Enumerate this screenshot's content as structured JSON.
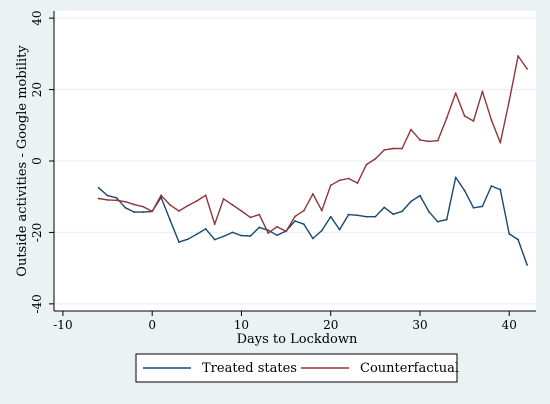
{
  "chart_data": {
    "type": "line",
    "xlabel": "Days to Lockdown",
    "ylabel": "Outside activities - Google mobility",
    "xlim": [
      -11,
      43
    ],
    "ylim": [
      -42,
      42
    ],
    "xticks": [
      -10,
      0,
      10,
      20,
      30,
      40
    ],
    "yticks": [
      40,
      20,
      0,
      -20,
      -40
    ],
    "ytick_labels": [
      "40",
      "20",
      "0",
      "-20",
      "-40"
    ],
    "grid": true,
    "legend_position": "bottom",
    "series": [
      {
        "name": "Treated states",
        "color": "#1a476f",
        "x": [
          -6,
          -5,
          -4,
          -3,
          -2,
          -1,
          0,
          1,
          2,
          3,
          4,
          5,
          6,
          7,
          8,
          9,
          10,
          11,
          12,
          13,
          14,
          15,
          16,
          17,
          18,
          19,
          20,
          21,
          22,
          23,
          24,
          25,
          26,
          27,
          28,
          29,
          30,
          31,
          32,
          33,
          34,
          35,
          36,
          37,
          38,
          39,
          40,
          41,
          42
        ],
        "y": [
          -7.5,
          -9.7,
          -10.3,
          -13.1,
          -14.3,
          -14.3,
          -14.1,
          -10.2,
          -16.5,
          -22.7,
          -21.9,
          -20.5,
          -19.0,
          -22.0,
          -21.1,
          -20.0,
          -20.9,
          -21.0,
          -18.6,
          -19.4,
          -20.8,
          -19.6,
          -16.8,
          -17.7,
          -21.7,
          -19.5,
          -15.6,
          -19.2,
          -15.0,
          -15.2,
          -15.6,
          -15.6,
          -13.0,
          -14.9,
          -14.1,
          -11.3,
          -9.7,
          -14.2,
          -17.0,
          -16.4,
          -4.6,
          -8.3,
          -13.1,
          -12.7,
          -7.0,
          -8.0,
          -20.4,
          -22.0,
          -29.1
        ]
      },
      {
        "name": "Counterfactual",
        "color": "#90353b",
        "x": [
          -6,
          -5,
          -4,
          -3,
          -2,
          -1,
          0,
          1,
          2,
          3,
          4,
          5,
          6,
          7,
          8,
          9,
          10,
          11,
          12,
          13,
          14,
          15,
          16,
          17,
          18,
          19,
          20,
          21,
          22,
          23,
          24,
          25,
          26,
          27,
          28,
          29,
          30,
          31,
          32,
          33,
          34,
          35,
          36,
          37,
          38,
          39,
          40,
          41,
          42
        ],
        "y": [
          -10.5,
          -10.9,
          -11.0,
          -11.4,
          -12.2,
          -12.8,
          -14.1,
          -9.6,
          -12.3,
          -14.0,
          -12.5,
          -11.2,
          -9.6,
          -17.7,
          -10.6,
          -12.3,
          -14.0,
          -15.8,
          -15.0,
          -20.2,
          -18.4,
          -19.7,
          -15.5,
          -13.9,
          -9.2,
          -13.9,
          -6.8,
          -5.4,
          -4.9,
          -6.2,
          -1.0,
          0.6,
          3.1,
          3.5,
          3.5,
          8.8,
          5.9,
          5.5,
          5.7,
          12.0,
          19.0,
          12.6,
          11.2,
          19.5,
          11.5,
          5.1,
          16.8,
          29.4,
          25.8
        ]
      }
    ]
  }
}
